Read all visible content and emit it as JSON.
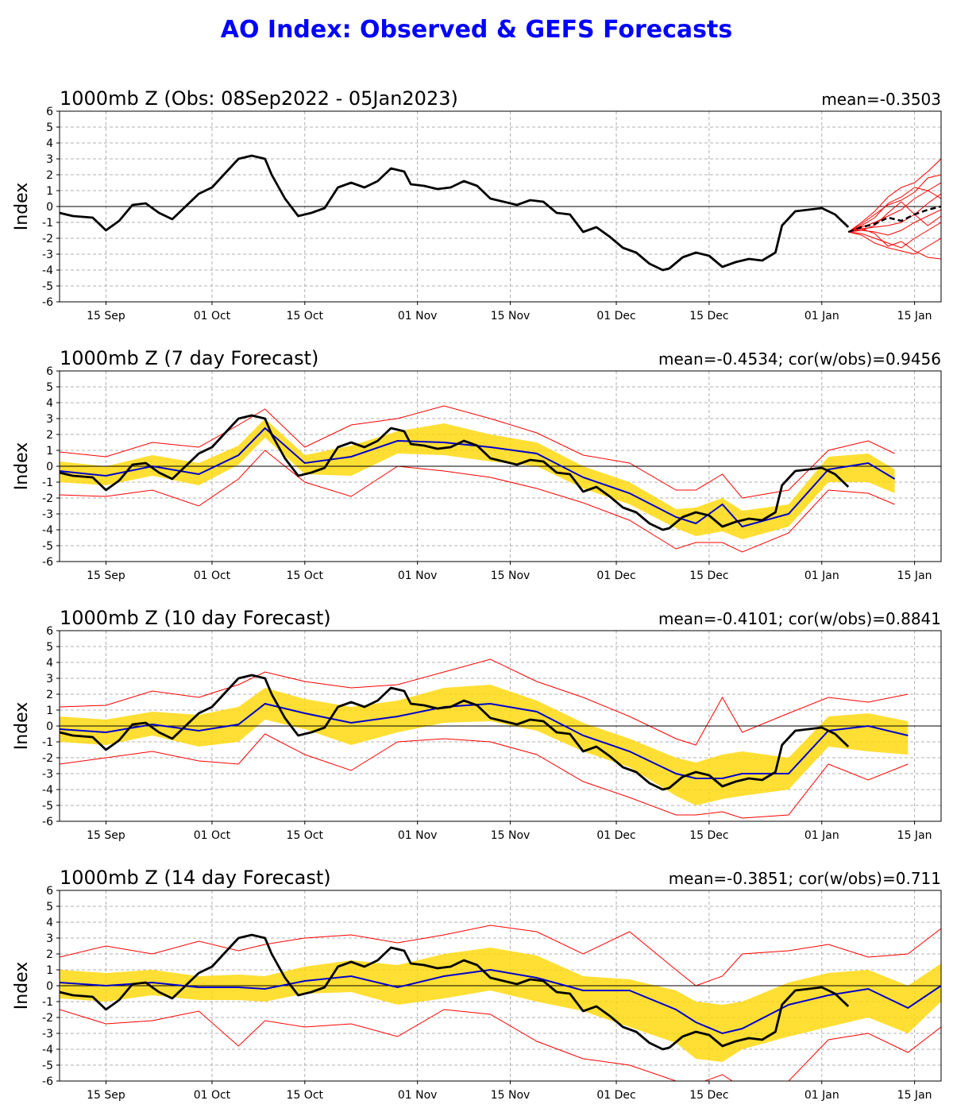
{
  "figure": {
    "title": "AO Index: Observed & GEFS Forecasts"
  },
  "colors": {
    "title": "#0000ff",
    "observed": "#000000",
    "ensemble_mean": "#0000cc",
    "spread_band": "#ffd700",
    "extremes": "#ff0000",
    "members": "#ff0000",
    "grid": "#b0b0b0"
  },
  "chart_data": [
    {
      "type": "line",
      "title": "1000mb Z (Obs: 08Sep2022 - 05Jan2023)",
      "stat": "mean=-0.3503",
      "ylabel": "Index",
      "ylim": [
        -6,
        6
      ],
      "yticks": [
        -6,
        -5,
        -4,
        -3,
        -2,
        -1,
        0,
        1,
        2,
        3,
        4,
        5,
        6
      ],
      "xlim": [
        "2022-09-08",
        "2023-01-19"
      ],
      "xticks": [
        {
          "date": "2022-09-15",
          "label": "15 Sep"
        },
        {
          "date": "2022-10-01",
          "label": "01 Oct"
        },
        {
          "date": "2022-10-15",
          "label": "15 Oct"
        },
        {
          "date": "2022-11-01",
          "label": "01 Nov"
        },
        {
          "date": "2022-11-15",
          "label": "15 Nov"
        },
        {
          "date": "2022-12-01",
          "label": "01 Dec"
        },
        {
          "date": "2022-12-15",
          "label": "15 Dec"
        },
        {
          "date": "2023-01-01",
          "label": "01 Jan"
        },
        {
          "date": "2023-01-15",
          "label": "15 Jan"
        }
      ],
      "grid": true,
      "series": [
        {
          "role": "observed",
          "x": [
            "2022-09-08",
            "2022-09-10",
            "2022-09-13",
            "2022-09-15",
            "2022-09-17",
            "2022-09-19",
            "2022-09-21",
            "2022-09-23",
            "2022-09-25",
            "2022-09-27",
            "2022-09-29",
            "2022-10-01",
            "2022-10-03",
            "2022-10-05",
            "2022-10-07",
            "2022-10-09",
            "2022-10-10",
            "2022-10-12",
            "2022-10-14",
            "2022-10-16",
            "2022-10-18",
            "2022-10-20",
            "2022-10-22",
            "2022-10-24",
            "2022-10-26",
            "2022-10-28",
            "2022-10-30",
            "2022-10-31",
            "2022-11-02",
            "2022-11-04",
            "2022-11-06",
            "2022-11-08",
            "2022-11-10",
            "2022-11-12",
            "2022-11-14",
            "2022-11-16",
            "2022-11-18",
            "2022-11-20",
            "2022-11-22",
            "2022-11-24",
            "2022-11-26",
            "2022-11-28",
            "2022-11-30",
            "2022-12-02",
            "2022-12-04",
            "2022-12-06",
            "2022-12-08",
            "2022-12-09",
            "2022-12-11",
            "2022-12-13",
            "2022-12-15",
            "2022-12-17",
            "2022-12-19",
            "2022-12-21",
            "2022-12-23",
            "2022-12-25",
            "2022-12-26",
            "2022-12-28",
            "2022-12-30",
            "2023-01-01",
            "2023-01-03",
            "2023-01-05"
          ],
          "values": [
            -0.4,
            -0.6,
            -0.7,
            -1.5,
            -0.9,
            0.1,
            0.2,
            -0.4,
            -0.8,
            0.0,
            0.8,
            1.2,
            2.1,
            3.0,
            3.2,
            3.0,
            2.0,
            0.5,
            -0.6,
            -0.4,
            -0.1,
            1.2,
            1.5,
            1.2,
            1.6,
            2.4,
            2.2,
            1.4,
            1.3,
            1.1,
            1.2,
            1.6,
            1.3,
            0.5,
            0.3,
            0.1,
            0.4,
            0.3,
            -0.4,
            -0.5,
            -1.6,
            -1.3,
            -1.9,
            -2.6,
            -2.9,
            -3.6,
            -4.0,
            -3.9,
            -3.2,
            -2.9,
            -3.1,
            -3.8,
            -3.5,
            -3.3,
            -3.4,
            -2.9,
            -1.2,
            -0.3,
            -0.2,
            -0.1,
            -0.5,
            -1.3
          ]
        },
        {
          "role": "ensemble-mean",
          "dashed": true,
          "x": [
            "2023-01-05",
            "2023-01-07",
            "2023-01-09",
            "2023-01-11",
            "2023-01-13",
            "2023-01-15",
            "2023-01-17",
            "2023-01-19"
          ],
          "values": [
            -1.6,
            -1.3,
            -1.1,
            -0.7,
            -0.9,
            -0.5,
            -0.2,
            0.0
          ]
        },
        {
          "role": "members",
          "x": [
            "2023-01-05",
            "2023-01-07",
            "2023-01-09",
            "2023-01-11",
            "2023-01-13",
            "2023-01-15",
            "2023-01-17",
            "2023-01-19"
          ],
          "members": [
            [
              -1.6,
              -1.0,
              -0.3,
              0.6,
              1.2,
              1.5,
              2.2,
              3.0
            ],
            [
              -1.6,
              -1.2,
              -0.7,
              0.2,
              0.6,
              1.2,
              1.0,
              0.5
            ],
            [
              -1.6,
              -1.3,
              -1.0,
              -0.6,
              -0.2,
              0.5,
              1.0,
              1.5
            ],
            [
              -1.6,
              -1.4,
              -1.3,
              -1.2,
              -1.0,
              -0.5,
              0.2,
              0.8
            ],
            [
              -1.6,
              -1.5,
              -1.6,
              -1.8,
              -1.5,
              -1.0,
              -0.6,
              -0.2
            ],
            [
              -1.6,
              -1.7,
              -2.0,
              -2.3,
              -2.6,
              -2.0,
              -1.5,
              -1.0
            ],
            [
              -1.6,
              -1.8,
              -2.3,
              -2.6,
              -2.8,
              -3.0,
              -2.5,
              -2.0
            ],
            [
              -1.6,
              -1.4,
              -1.7,
              -2.5,
              -2.2,
              -2.8,
              -3.2,
              -3.3
            ],
            [
              -1.6,
              -1.1,
              -0.5,
              0.1,
              0.4,
              0.9,
              1.8,
              2.0
            ],
            [
              -1.6,
              -1.5,
              -1.2,
              -0.4,
              0.3,
              -0.5,
              -1.2,
              -0.6
            ]
          ]
        }
      ]
    },
    {
      "type": "line",
      "title": "1000mb Z (7 day Forecast)",
      "stat": "mean=-0.4534; cor(w/obs)=0.9456",
      "ylabel": "Index",
      "ylim": [
        -6,
        6
      ],
      "yticks": [
        -6,
        -5,
        -4,
        -3,
        -2,
        -1,
        0,
        1,
        2,
        3,
        4,
        5,
        6
      ],
      "xlim": [
        "2022-09-08",
        "2023-01-19"
      ],
      "xticks": [
        {
          "date": "2022-09-15",
          "label": "15 Sep"
        },
        {
          "date": "2022-10-01",
          "label": "01 Oct"
        },
        {
          "date": "2022-10-15",
          "label": "15 Oct"
        },
        {
          "date": "2022-11-01",
          "label": "01 Nov"
        },
        {
          "date": "2022-11-15",
          "label": "15 Nov"
        },
        {
          "date": "2022-12-01",
          "label": "01 Dec"
        },
        {
          "date": "2022-12-15",
          "label": "15 Dec"
        },
        {
          "date": "2023-01-01",
          "label": "01 Jan"
        },
        {
          "date": "2023-01-15",
          "label": "15 Jan"
        }
      ],
      "grid": true,
      "forecast_x": [
        "2022-09-08",
        "2022-09-15",
        "2022-09-22",
        "2022-09-29",
        "2022-10-05",
        "2022-10-09",
        "2022-10-15",
        "2022-10-22",
        "2022-10-29",
        "2022-11-05",
        "2022-11-12",
        "2022-11-19",
        "2022-11-26",
        "2022-12-03",
        "2022-12-10",
        "2022-12-13",
        "2022-12-17",
        "2022-12-20",
        "2022-12-27",
        "2023-01-02",
        "2023-01-08",
        "2023-01-12"
      ],
      "series": [
        {
          "role": "observed",
          "from_panel": 0
        },
        {
          "role": "ensemble-mean",
          "values": [
            -0.3,
            -0.6,
            0.0,
            -0.5,
            0.7,
            2.4,
            0.2,
            0.6,
            1.6,
            1.5,
            1.2,
            0.8,
            -0.7,
            -1.7,
            -3.2,
            -3.6,
            -2.4,
            -3.8,
            -3.0,
            -0.2,
            0.2,
            -0.8
          ]
        },
        {
          "role": "band-upper",
          "values": [
            0.3,
            0.0,
            0.7,
            0.2,
            1.3,
            3.0,
            0.7,
            1.3,
            2.2,
            2.7,
            2.0,
            1.5,
            0.0,
            -1.0,
            -2.7,
            -2.6,
            -2.0,
            -2.8,
            -2.4,
            0.6,
            0.8,
            -0.2
          ]
        },
        {
          "role": "band-lower",
          "values": [
            -1.0,
            -1.2,
            -0.6,
            -1.2,
            0.1,
            1.8,
            -0.5,
            -0.6,
            0.8,
            0.7,
            0.3,
            0.0,
            -1.4,
            -2.4,
            -3.9,
            -4.4,
            -4.1,
            -4.6,
            -3.8,
            -1.0,
            -1.0,
            -1.7
          ]
        },
        {
          "role": "extreme-upper",
          "values": [
            0.9,
            0.6,
            1.5,
            1.2,
            2.6,
            3.6,
            1.2,
            2.6,
            3.0,
            3.8,
            3.0,
            2.1,
            0.7,
            0.2,
            -1.5,
            -1.5,
            -0.5,
            -2.0,
            -1.5,
            1.0,
            1.6,
            0.8
          ]
        },
        {
          "role": "extreme-lower",
          "values": [
            -1.8,
            -1.9,
            -1.5,
            -2.5,
            -0.8,
            1.0,
            -1.0,
            -1.9,
            0.0,
            -0.3,
            -0.7,
            -1.4,
            -2.3,
            -3.4,
            -5.2,
            -4.8,
            -4.8,
            -5.4,
            -4.2,
            -1.5,
            -1.7,
            -2.4
          ]
        }
      ]
    },
    {
      "type": "line",
      "title": "1000mb Z (10 day Forecast)",
      "stat": "mean=-0.4101; cor(w/obs)=0.8841",
      "ylabel": "Index",
      "ylim": [
        -6,
        6
      ],
      "yticks": [
        -6,
        -5,
        -4,
        -3,
        -2,
        -1,
        0,
        1,
        2,
        3,
        4,
        5,
        6
      ],
      "xlim": [
        "2022-09-08",
        "2023-01-19"
      ],
      "xticks": [
        {
          "date": "2022-09-15",
          "label": "15 Sep"
        },
        {
          "date": "2022-10-01",
          "label": "01 Oct"
        },
        {
          "date": "2022-10-15",
          "label": "15 Oct"
        },
        {
          "date": "2022-11-01",
          "label": "01 Nov"
        },
        {
          "date": "2022-11-15",
          "label": "15 Nov"
        },
        {
          "date": "2022-12-01",
          "label": "01 Dec"
        },
        {
          "date": "2022-12-15",
          "label": "15 Dec"
        },
        {
          "date": "2023-01-01",
          "label": "01 Jan"
        },
        {
          "date": "2023-01-15",
          "label": "15 Jan"
        }
      ],
      "grid": true,
      "forecast_x": [
        "2022-09-08",
        "2022-09-15",
        "2022-09-22",
        "2022-09-29",
        "2022-10-05",
        "2022-10-09",
        "2022-10-15",
        "2022-10-22",
        "2022-10-29",
        "2022-11-05",
        "2022-11-12",
        "2022-11-19",
        "2022-11-26",
        "2022-12-03",
        "2022-12-10",
        "2022-12-13",
        "2022-12-17",
        "2022-12-20",
        "2022-12-27",
        "2023-01-02",
        "2023-01-08",
        "2023-01-14"
      ],
      "series": [
        {
          "role": "observed",
          "from_panel": 0
        },
        {
          "role": "ensemble-mean",
          "values": [
            -0.2,
            -0.4,
            0.1,
            -0.3,
            0.1,
            1.4,
            0.8,
            0.2,
            0.6,
            1.2,
            1.4,
            0.9,
            -0.6,
            -1.6,
            -3.0,
            -3.3,
            -3.3,
            -3.0,
            -3.0,
            -0.3,
            0.0,
            -0.6
          ]
        },
        {
          "role": "band-upper",
          "values": [
            0.6,
            0.4,
            0.9,
            0.7,
            1.2,
            2.4,
            1.7,
            1.2,
            1.6,
            2.4,
            2.6,
            1.6,
            0.2,
            -0.8,
            -2.0,
            -2.3,
            -1.8,
            -1.6,
            -2.0,
            0.6,
            0.8,
            0.3
          ]
        },
        {
          "role": "band-lower",
          "values": [
            -1.0,
            -1.2,
            -0.6,
            -1.3,
            -1.0,
            0.4,
            -0.2,
            -1.2,
            -0.4,
            0.2,
            0.3,
            -0.3,
            -1.6,
            -2.6,
            -4.4,
            -5.0,
            -4.6,
            -4.4,
            -4.0,
            -1.3,
            -1.6,
            -1.8
          ]
        },
        {
          "role": "extreme-upper",
          "values": [
            1.2,
            1.3,
            2.2,
            1.8,
            2.6,
            3.4,
            2.8,
            2.4,
            2.6,
            3.4,
            4.2,
            2.8,
            1.8,
            0.6,
            -0.8,
            -1.2,
            1.8,
            -0.4,
            0.8,
            1.8,
            1.5,
            2.0
          ]
        },
        {
          "role": "extreme-lower",
          "values": [
            -2.4,
            -2.0,
            -1.6,
            -2.2,
            -2.4,
            -0.5,
            -1.8,
            -2.8,
            -1.0,
            -0.8,
            -1.0,
            -1.8,
            -3.5,
            -4.5,
            -5.6,
            -5.6,
            -5.4,
            -5.8,
            -5.6,
            -2.4,
            -3.4,
            -2.4
          ]
        }
      ]
    },
    {
      "type": "line",
      "title": "1000mb Z (14 day Forecast)",
      "stat": "mean=-0.3851; cor(w/obs)=0.711",
      "ylabel": "Index",
      "ylim": [
        -6,
        6
      ],
      "yticks": [
        -6,
        -5,
        -4,
        -3,
        -2,
        -1,
        0,
        1,
        2,
        3,
        4,
        5,
        6
      ],
      "xlim": [
        "2022-09-08",
        "2023-01-19"
      ],
      "xticks": [
        {
          "date": "2022-09-15",
          "label": "15 Sep"
        },
        {
          "date": "2022-10-01",
          "label": "01 Oct"
        },
        {
          "date": "2022-10-15",
          "label": "15 Oct"
        },
        {
          "date": "2022-11-01",
          "label": "01 Nov"
        },
        {
          "date": "2022-11-15",
          "label": "15 Nov"
        },
        {
          "date": "2022-12-01",
          "label": "01 Dec"
        },
        {
          "date": "2022-12-15",
          "label": "15 Dec"
        },
        {
          "date": "2023-01-01",
          "label": "01 Jan"
        },
        {
          "date": "2023-01-15",
          "label": "15 Jan"
        }
      ],
      "grid": true,
      "forecast_x": [
        "2022-09-08",
        "2022-09-15",
        "2022-09-22",
        "2022-09-29",
        "2022-10-05",
        "2022-10-09",
        "2022-10-15",
        "2022-10-22",
        "2022-10-29",
        "2022-11-05",
        "2022-11-12",
        "2022-11-19",
        "2022-11-26",
        "2022-12-03",
        "2022-12-10",
        "2022-12-13",
        "2022-12-17",
        "2022-12-20",
        "2022-12-27",
        "2023-01-02",
        "2023-01-08",
        "2023-01-14",
        "2023-01-19"
      ],
      "series": [
        {
          "role": "observed",
          "from_panel": 0
        },
        {
          "role": "ensemble-mean",
          "values": [
            0.2,
            0.0,
            0.2,
            -0.1,
            -0.1,
            -0.2,
            0.3,
            0.6,
            -0.1,
            0.6,
            1.0,
            0.5,
            -0.3,
            -0.3,
            -1.5,
            -2.3,
            -3.0,
            -2.7,
            -1.2,
            -0.6,
            -0.2,
            -1.4,
            0.0
          ]
        },
        {
          "role": "band-upper",
          "values": [
            1.0,
            0.8,
            1.0,
            0.6,
            0.7,
            0.6,
            1.2,
            1.6,
            1.3,
            2.0,
            2.4,
            1.9,
            0.6,
            0.4,
            -0.3,
            -1.0,
            -1.2,
            -1.0,
            0.2,
            0.8,
            1.0,
            0.0,
            1.4
          ]
        },
        {
          "role": "band-lower",
          "values": [
            -0.8,
            -1.0,
            -0.6,
            -0.9,
            -0.9,
            -1.0,
            -0.5,
            -0.4,
            -1.2,
            -0.8,
            -0.3,
            -1.0,
            -1.6,
            -2.6,
            -3.6,
            -4.6,
            -4.8,
            -4.0,
            -3.2,
            -2.6,
            -2.0,
            -3.0,
            -1.0
          ]
        },
        {
          "role": "extreme-upper",
          "values": [
            1.8,
            2.5,
            2.0,
            2.8,
            2.2,
            2.6,
            3.0,
            3.2,
            2.7,
            3.2,
            3.8,
            3.4,
            2.0,
            3.4,
            1.0,
            0.0,
            0.6,
            2.0,
            2.2,
            2.6,
            1.8,
            2.0,
            3.6
          ]
        },
        {
          "role": "extreme-lower",
          "values": [
            -1.5,
            -2.4,
            -2.2,
            -1.6,
            -3.8,
            -2.2,
            -2.6,
            -2.4,
            -3.2,
            -1.5,
            -1.8,
            -3.5,
            -4.6,
            -5.0,
            -6.0,
            -6.2,
            -5.6,
            -6.4,
            -6.0,
            -3.4,
            -3.0,
            -4.2,
            -2.6
          ]
        }
      ]
    }
  ]
}
